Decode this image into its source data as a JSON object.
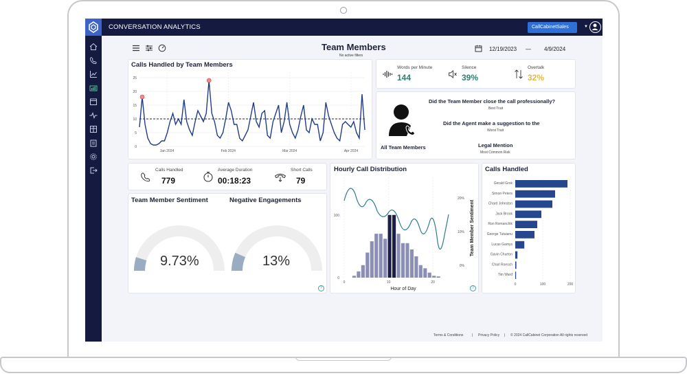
{
  "app": {
    "title": "CONVERSATION ANALYTICS",
    "account": "CallCabinetSales"
  },
  "page": {
    "title": "Team Members",
    "subtitle": "No active filters",
    "date_from": "12/19/2023",
    "date_sep": "—",
    "date_to": "4/9/2024"
  },
  "sidebar": {
    "icons": [
      "home-icon",
      "phone-icon",
      "chart-icon",
      "dashboard-icon",
      "calendar-icon",
      "pulse-icon",
      "table-icon",
      "clipboard-icon",
      "settings-icon",
      "logout-icon"
    ]
  },
  "calls_chart": {
    "title": "Calls Handled by Team Members",
    "chart_data": {
      "type": "line",
      "x_ticks": [
        "Jan 2024",
        "Feb 2024",
        "Mar 2024",
        "Apr 2024"
      ],
      "y_ticks": [
        "0",
        "5",
        "10",
        "15",
        "20",
        "25"
      ],
      "ylim": [
        0,
        27
      ],
      "reference_line": 10,
      "values": [
        7,
        18,
        8,
        3,
        1,
        0.5,
        0.5,
        1,
        2,
        2,
        5,
        9,
        12,
        8,
        10,
        8,
        17,
        9,
        6,
        4,
        9,
        13,
        11,
        9,
        12,
        24,
        12,
        9,
        4,
        3,
        5,
        10,
        16,
        13,
        8,
        8,
        3,
        2,
        4,
        6,
        11,
        16,
        9,
        7,
        12,
        13,
        4,
        3,
        9,
        12,
        15,
        5,
        9,
        16,
        8,
        5,
        3,
        6,
        11,
        15,
        6,
        5,
        10,
        8,
        8,
        2,
        5,
        16,
        11,
        8,
        5,
        3,
        2,
        8,
        9,
        8,
        7,
        9,
        5,
        3,
        19,
        6
      ],
      "highlight_points": [
        [
          1,
          18
        ],
        [
          25,
          24
        ]
      ]
    }
  },
  "kpis": {
    "words_per_minute": {
      "label": "Words per Minute",
      "value": "144",
      "color": "#2e7d6f"
    },
    "silence": {
      "label": "Silence",
      "value": "39%",
      "color": "#2e7d6f"
    },
    "overtalk": {
      "label": "Overtalk",
      "value": "32%",
      "color": "#e4b84a"
    }
  },
  "insights": {
    "team_label": "All Team Members",
    "items": [
      {
        "question": "Did the Team Member close the call professionally?",
        "sub": "Best Trait"
      },
      {
        "question": "Did the Agent make a suggestion to the",
        "sub": "Worst Trait"
      },
      {
        "question": "Legal Mention",
        "sub": "Most Common Risk"
      }
    ]
  },
  "call_stats": {
    "calls_handled": {
      "label": "Calls Handled",
      "value": "779"
    },
    "avg_duration": {
      "label": "Average Duration",
      "value": "00:18:23"
    },
    "short_calls": {
      "label": "Short Calls",
      "value": "79"
    }
  },
  "sentiment": {
    "title": "Team Member Sentiment",
    "value": "9.73%",
    "fraction": 0.0973
  },
  "negative": {
    "title": "Negative Engagements",
    "value": "13%",
    "fraction": 0.13
  },
  "hourly": {
    "title": "Hourly Call Distribution",
    "chart_data": {
      "type": "bar",
      "xlabel": "Hour of Day",
      "y2label": "Team Member Sentiment",
      "x_ticks": [
        "0",
        "10",
        "20"
      ],
      "y_ticks": [
        "0",
        "100"
      ],
      "y2_ticks": [
        "0%",
        "10%",
        "20%"
      ],
      "hours": [
        1,
        2,
        3,
        4,
        5,
        6,
        7,
        8,
        9,
        10,
        11,
        12,
        13,
        14,
        15,
        16,
        17,
        18,
        19,
        20
      ],
      "values": [
        3,
        10,
        20,
        40,
        58,
        70,
        70,
        62,
        100,
        100,
        70,
        55,
        55,
        45,
        34,
        20,
        15,
        8,
        3,
        2
      ],
      "highlight_hours": [
        9,
        10
      ]
    }
  },
  "calls_handled": {
    "title": "Calls Handled",
    "chart_data": {
      "type": "bar",
      "categories": [
        "Gerald Grok",
        "Simon Peters",
        "Chard Johnston",
        "Jack Brook",
        "Ron Romanchik",
        "George Tutuianu",
        "Lucas Gamys",
        "Gavin Churton",
        "Charl Roesch",
        "Tim Ward"
      ],
      "values": [
        190,
        145,
        135,
        95,
        80,
        70,
        33,
        8,
        4,
        3
      ],
      "x_ticks": [
        "0",
        "100",
        "200"
      ],
      "xlim": [
        0,
        200
      ]
    }
  },
  "footer": {
    "terms": "Terms & Conditions",
    "sep1": "|",
    "privacy": "Privacy Policy",
    "sep2": "|",
    "copyright": "© 2024 CallCabinet Corporation All rights reserved"
  }
}
